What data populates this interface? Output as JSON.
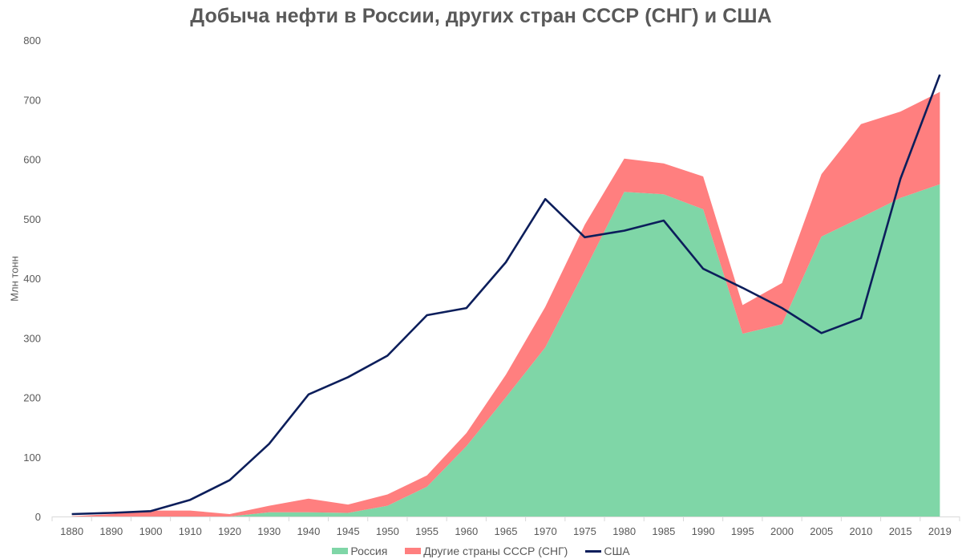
{
  "chart_data": {
    "type": "area",
    "title": "Добыча нефти в России, других стран СССР (СНГ) и США",
    "xlabel": "",
    "ylabel": "Млн тонн",
    "ylim": [
      0,
      800
    ],
    "yticks": [
      0,
      100,
      200,
      300,
      400,
      500,
      600,
      700,
      800
    ],
    "grid": false,
    "legend_position": "bottom",
    "categories": [
      "1880",
      "1890",
      "1900",
      "1910",
      "1920",
      "1930",
      "1940",
      "1945",
      "1950",
      "1955",
      "1960",
      "1965",
      "1970",
      "1975",
      "1980",
      "1985",
      "1990",
      "1995",
      "2000",
      "2005",
      "2010",
      "2015",
      "2019"
    ],
    "series": [
      {
        "name": "Россия",
        "kind": "stacked-area",
        "color": "#7fd6a7",
        "values": [
          0,
          0,
          0,
          0,
          0,
          7,
          7,
          6,
          18,
          50,
          118,
          200,
          284,
          413,
          545,
          541,
          516,
          307,
          323,
          470,
          502,
          535,
          558
        ]
      },
      {
        "name": "Другие страны СССР (СНГ)",
        "kind": "stacked-area",
        "color": "#ff7f7f",
        "values": [
          0.5,
          4,
          10,
          10,
          4,
          11,
          23,
          14,
          19,
          19,
          22,
          38,
          68,
          77,
          56,
          52,
          55,
          48,
          69,
          105,
          157,
          145,
          155
        ]
      },
      {
        "name": "США",
        "kind": "line",
        "color": "#0c1e5b",
        "values": [
          4,
          6,
          9,
          28,
          61,
          122,
          205,
          234,
          270,
          338,
          350,
          427,
          533,
          469,
          480,
          497,
          416,
          384,
          350,
          308,
          333,
          567,
          742
        ]
      }
    ]
  }
}
